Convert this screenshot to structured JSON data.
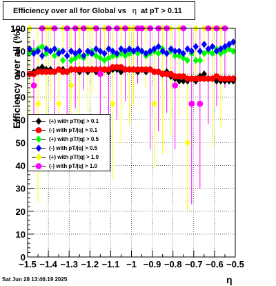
{
  "chart_data": {
    "type": "scatter",
    "title": "Efficiency over all for Global vs",
    "title_symbol": "η",
    "title_suffix": "at pT > 0.11",
    "xlabel": "η",
    "ylabel": "Efficiency over all (%)",
    "xlim": [
      -1.5,
      -0.5
    ],
    "ylim": [
      0,
      100
    ],
    "x_ticks": [
      "−1.5",
      "−1.4",
      "−1.3",
      "−1.2",
      "−1.1",
      "−1",
      "−0.9",
      "−0.8",
      "−0.7",
      "−0.6",
      "−0.5"
    ],
    "y_ticks": [
      "0",
      "10",
      "20",
      "30",
      "40",
      "50",
      "60",
      "70",
      "80",
      "90",
      "100"
    ],
    "grid": true,
    "legend_position": "middle-left",
    "series": [
      {
        "name": "(+) with pT/|q| > 0.1",
        "color": "#000000",
        "marker": "diamond",
        "points": [
          [
            -1.49,
            80
          ],
          [
            -1.47,
            81
          ],
          [
            -1.45,
            82
          ],
          [
            -1.43,
            83
          ],
          [
            -1.41,
            82
          ],
          [
            -1.39,
            82
          ],
          [
            -1.37,
            81
          ],
          [
            -1.35,
            82
          ],
          [
            -1.33,
            82
          ],
          [
            -1.31,
            81
          ],
          [
            -1.29,
            82
          ],
          [
            -1.27,
            82
          ],
          [
            -1.25,
            81
          ],
          [
            -1.23,
            82
          ],
          [
            -1.21,
            81
          ],
          [
            -1.19,
            82
          ],
          [
            -1.17,
            81
          ],
          [
            -1.15,
            82
          ],
          [
            -1.13,
            82
          ],
          [
            -1.11,
            81
          ],
          [
            -1.09,
            82
          ],
          [
            -1.07,
            82
          ],
          [
            -1.05,
            81
          ],
          [
            -1.03,
            82
          ],
          [
            -1.01,
            82
          ],
          [
            -0.99,
            82
          ],
          [
            -0.97,
            81
          ],
          [
            -0.95,
            82
          ],
          [
            -0.93,
            81
          ],
          [
            -0.91,
            82
          ],
          [
            -0.89,
            81
          ],
          [
            -0.87,
            81
          ],
          [
            -0.85,
            80
          ],
          [
            -0.83,
            81
          ],
          [
            -0.81,
            79
          ],
          [
            -0.79,
            78
          ],
          [
            -0.77,
            77
          ],
          [
            -0.75,
            77
          ],
          [
            -0.73,
            77
          ],
          [
            -0.71,
            78
          ],
          [
            -0.69,
            77
          ],
          [
            -0.67,
            79
          ],
          [
            -0.65,
            80
          ],
          [
            -0.63,
            78
          ],
          [
            -0.61,
            78
          ],
          [
            -0.59,
            77
          ],
          [
            -0.57,
            77
          ],
          [
            -0.55,
            77
          ],
          [
            -0.53,
            77
          ],
          [
            -0.51,
            77
          ]
        ]
      },
      {
        "name": "(-) with pT/|q| > 0.1",
        "color": "#ff0000",
        "marker": "circle",
        "points": [
          [
            -1.49,
            80
          ],
          [
            -1.47,
            80
          ],
          [
            -1.45,
            81
          ],
          [
            -1.43,
            81
          ],
          [
            -1.41,
            81
          ],
          [
            -1.39,
            81
          ],
          [
            -1.37,
            81
          ],
          [
            -1.35,
            82
          ],
          [
            -1.33,
            81
          ],
          [
            -1.31,
            81
          ],
          [
            -1.29,
            82
          ],
          [
            -1.27,
            82
          ],
          [
            -1.25,
            82
          ],
          [
            -1.23,
            82
          ],
          [
            -1.21,
            82
          ],
          [
            -1.19,
            82
          ],
          [
            -1.17,
            82
          ],
          [
            -1.15,
            82
          ],
          [
            -1.13,
            82
          ],
          [
            -1.11,
            82
          ],
          [
            -1.09,
            83
          ],
          [
            -1.07,
            83
          ],
          [
            -1.05,
            83
          ],
          [
            -1.03,
            82
          ],
          [
            -1.01,
            82
          ],
          [
            -0.99,
            82
          ],
          [
            -0.97,
            82
          ],
          [
            -0.95,
            82
          ],
          [
            -0.93,
            82
          ],
          [
            -0.91,
            82
          ],
          [
            -0.89,
            81
          ],
          [
            -0.87,
            81
          ],
          [
            -0.85,
            80
          ],
          [
            -0.83,
            80
          ],
          [
            -0.81,
            80
          ],
          [
            -0.79,
            79
          ],
          [
            -0.77,
            79
          ],
          [
            -0.75,
            79
          ],
          [
            -0.73,
            78
          ],
          [
            -0.71,
            78
          ],
          [
            -0.69,
            78
          ],
          [
            -0.67,
            78
          ],
          [
            -0.65,
            78
          ],
          [
            -0.63,
            78
          ],
          [
            -0.61,
            78
          ],
          [
            -0.59,
            79
          ],
          [
            -0.57,
            78
          ],
          [
            -0.55,
            78
          ],
          [
            -0.53,
            78
          ],
          [
            -0.51,
            78
          ]
        ]
      },
      {
        "name": "(+) with pT/|q| > 0.5",
        "color": "#00ff00",
        "marker": "diamond",
        "points": [
          [
            -1.49,
            89
          ],
          [
            -1.47,
            90
          ],
          [
            -1.45,
            91
          ],
          [
            -1.43,
            92
          ],
          [
            -1.41,
            89
          ],
          [
            -1.39,
            90
          ],
          [
            -1.37,
            88
          ],
          [
            -1.35,
            90
          ],
          [
            -1.33,
            86
          ],
          [
            -1.31,
            88
          ],
          [
            -1.29,
            86
          ],
          [
            -1.27,
            87
          ],
          [
            -1.25,
            88
          ],
          [
            -1.23,
            87
          ],
          [
            -1.21,
            89
          ],
          [
            -1.19,
            90
          ],
          [
            -1.17,
            88
          ],
          [
            -1.15,
            87
          ],
          [
            -1.13,
            86
          ],
          [
            -1.11,
            87
          ],
          [
            -1.09,
            88
          ],
          [
            -1.07,
            88
          ],
          [
            -1.05,
            89
          ],
          [
            -1.03,
            88
          ],
          [
            -1.01,
            89
          ],
          [
            -0.99,
            90
          ],
          [
            -0.97,
            89
          ],
          [
            -0.95,
            90
          ],
          [
            -0.93,
            88
          ],
          [
            -0.91,
            89
          ],
          [
            -0.89,
            90
          ],
          [
            -0.87,
            89
          ],
          [
            -0.85,
            91
          ],
          [
            -0.83,
            89
          ],
          [
            -0.81,
            90
          ],
          [
            -0.79,
            88
          ],
          [
            -0.77,
            88
          ],
          [
            -0.75,
            87
          ],
          [
            -0.73,
            86
          ],
          [
            -0.71,
            89
          ],
          [
            -0.69,
            86
          ],
          [
            -0.67,
            86
          ],
          [
            -0.65,
            89
          ],
          [
            -0.63,
            90
          ],
          [
            -0.61,
            89
          ],
          [
            -0.59,
            91
          ],
          [
            -0.57,
            89
          ],
          [
            -0.55,
            90
          ],
          [
            -0.53,
            91
          ],
          [
            -0.51,
            90
          ]
        ]
      },
      {
        "name": "(-) with pT/|q| > 0.5",
        "color": "#0000ff",
        "marker": "diamond",
        "points": [
          [
            -1.49,
            91
          ],
          [
            -1.47,
            89
          ],
          [
            -1.45,
            90
          ],
          [
            -1.43,
            88
          ],
          [
            -1.41,
            91
          ],
          [
            -1.39,
            90
          ],
          [
            -1.37,
            91
          ],
          [
            -1.35,
            89
          ],
          [
            -1.33,
            90
          ],
          [
            -1.31,
            88
          ],
          [
            -1.29,
            90
          ],
          [
            -1.27,
            89
          ],
          [
            -1.25,
            90
          ],
          [
            -1.23,
            88
          ],
          [
            -1.21,
            90
          ],
          [
            -1.19,
            89
          ],
          [
            -1.17,
            91
          ],
          [
            -1.15,
            90
          ],
          [
            -1.13,
            89
          ],
          [
            -1.11,
            91
          ],
          [
            -1.09,
            90
          ],
          [
            -1.07,
            89
          ],
          [
            -1.05,
            91
          ],
          [
            -1.03,
            90
          ],
          [
            -1.01,
            91
          ],
          [
            -0.99,
            90
          ],
          [
            -0.97,
            91
          ],
          [
            -0.95,
            90
          ],
          [
            -0.93,
            89
          ],
          [
            -0.91,
            90
          ],
          [
            -0.89,
            91
          ],
          [
            -0.87,
            92
          ],
          [
            -0.85,
            90
          ],
          [
            -0.83,
            89
          ],
          [
            -0.81,
            91
          ],
          [
            -0.79,
            90
          ],
          [
            -0.77,
            90
          ],
          [
            -0.75,
            89
          ],
          [
            -0.73,
            91
          ],
          [
            -0.71,
            90
          ],
          [
            -0.69,
            92
          ],
          [
            -0.67,
            90
          ],
          [
            -0.65,
            93
          ],
          [
            -0.63,
            91
          ],
          [
            -0.61,
            92
          ],
          [
            -0.59,
            90
          ],
          [
            -0.57,
            91
          ],
          [
            -0.55,
            92
          ],
          [
            -0.53,
            93
          ],
          [
            -0.51,
            94
          ]
        ]
      },
      {
        "name": "(+) with pT/|q| > 1.0",
        "color": "#ffff00",
        "marker": "diamond",
        "points": [
          [
            -1.49,
            100
          ],
          [
            -1.45,
            67
          ],
          [
            -1.41,
            100
          ],
          [
            -1.39,
            100
          ],
          [
            -1.35,
            67
          ],
          [
            -1.33,
            100
          ],
          [
            -1.29,
            75
          ],
          [
            -1.25,
            100
          ],
          [
            -1.21,
            100
          ],
          [
            -1.19,
            100
          ],
          [
            -1.13,
            100
          ],
          [
            -1.09,
            67
          ],
          [
            -1.05,
            100
          ],
          [
            -1.01,
            100
          ],
          [
            -0.99,
            100
          ],
          [
            -0.93,
            100
          ],
          [
            -0.89,
            67
          ],
          [
            -0.85,
            100
          ],
          [
            -0.81,
            100
          ],
          [
            -0.77,
            100
          ],
          [
            -0.73,
            50
          ],
          [
            -0.69,
            100
          ],
          [
            -0.65,
            100
          ],
          [
            -0.61,
            100
          ],
          [
            -0.57,
            100
          ]
        ]
      },
      {
        "name": "(-) with pT/|q| > 1.0",
        "color": "#ff00ff",
        "marker": "circle",
        "points": [
          [
            -1.47,
            75
          ],
          [
            -1.43,
            100
          ],
          [
            -1.37,
            100
          ],
          [
            -1.31,
            100
          ],
          [
            -1.27,
            100
          ],
          [
            -1.23,
            100
          ],
          [
            -1.17,
            100
          ],
          [
            -1.15,
            80
          ],
          [
            -1.11,
            100
          ],
          [
            -1.07,
            100
          ],
          [
            -1.03,
            100
          ],
          [
            -0.97,
            100
          ],
          [
            -0.95,
            100
          ],
          [
            -0.91,
            100
          ],
          [
            -0.87,
            100
          ],
          [
            -0.83,
            100
          ],
          [
            -0.79,
            75
          ],
          [
            -0.75,
            100
          ],
          [
            -0.71,
            67
          ],
          [
            -0.67,
            67
          ],
          [
            -0.63,
            100
          ],
          [
            -0.59,
            100
          ],
          [
            -0.55,
            100
          ]
        ]
      }
    ]
  },
  "footer": {
    "timestamp": "Sat Jun 28 13:46:19 2025"
  }
}
